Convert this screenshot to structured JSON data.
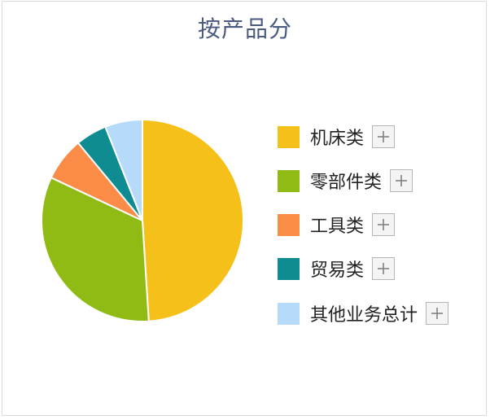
{
  "chart_data": {
    "type": "pie",
    "title": "按产品分",
    "categories": [
      "机床类",
      "零部件类",
      "工具类",
      "贸易类",
      "其他业务总计"
    ],
    "values": [
      49,
      33,
      7,
      5,
      6
    ],
    "colors": [
      "#f6c01a",
      "#8fbb14",
      "#fb8c48",
      "#0f8b92",
      "#b6dafa"
    ],
    "legend_position": "right",
    "expand_icon": "plus-icon"
  }
}
